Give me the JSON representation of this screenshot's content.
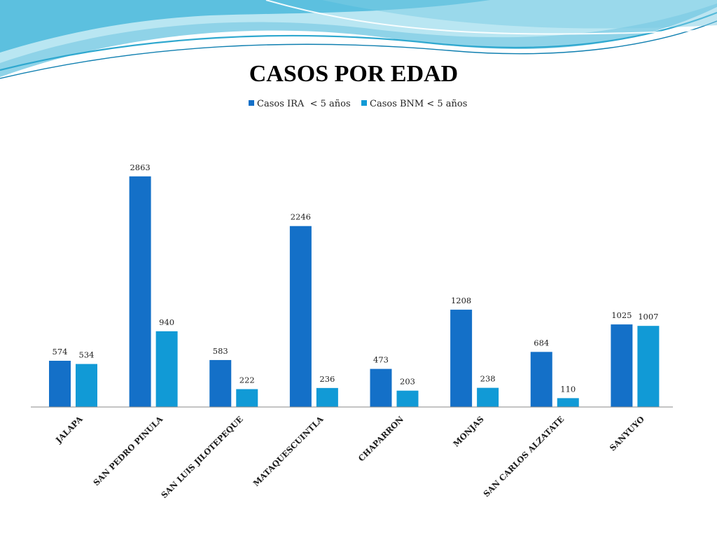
{
  "chart_data": {
    "type": "bar",
    "title": "CASOS POR EDAD",
    "categories": [
      "JALAPA",
      "SAN PEDRO PINULA",
      "SAN LUIS JILOTEPEQUE",
      "MATAQUESCUINTLA",
      "CHAPARRON",
      "MONJAS",
      "SAN CARLOS ALZATATE",
      "SANYUYO"
    ],
    "series": [
      {
        "name": "Casos IRA  < 5 años",
        "color": "#1470c8",
        "values": [
          574,
          2863,
          583,
          2246,
          473,
          1208,
          684,
          1025
        ]
      },
      {
        "name": "Casos BNM < 5 años",
        "color": "#119ad6",
        "values": [
          534,
          940,
          222,
          236,
          203,
          238,
          110,
          1007
        ]
      }
    ],
    "xlabel": "",
    "ylabel": "",
    "ylim": [
      0,
      3000
    ],
    "grid": false,
    "legend_position": "top"
  }
}
